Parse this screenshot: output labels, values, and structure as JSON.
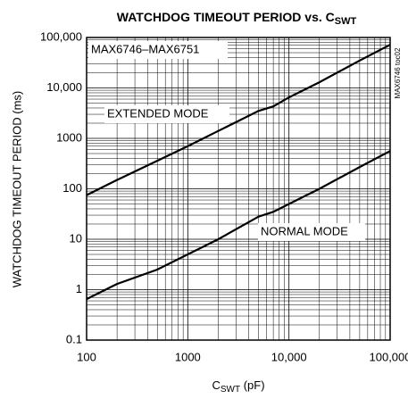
{
  "chart_data": {
    "type": "line",
    "title_parts": [
      "WATCHDOG TIMEOUT PERIOD vs. C",
      "SWT"
    ],
    "x_label_parts": [
      "C",
      "SWT",
      " (pF)"
    ],
    "y_label": "WATCHDOG TIMEOUT PERIOD (ms)",
    "annotations": [
      "MAX6746–MAX6751",
      "MAX6746 toc02"
    ],
    "log_x": true,
    "log_y": true,
    "grid": true,
    "minor_grid": true,
    "xlim": [
      100,
      100000
    ],
    "ylim": [
      0.1,
      100000
    ],
    "xticks": [
      100,
      1000,
      {
        "value": 10000,
        "label": "10,000"
      },
      {
        "value": 100000,
        "label": "100,000"
      }
    ],
    "yticks": [
      0.1,
      1,
      10,
      100,
      1000,
      {
        "value": 10000,
        "label": "10,000"
      },
      {
        "value": 100000,
        "label": "100,000"
      }
    ],
    "series": [
      {
        "name": "EXTENDED MODE",
        "color": "#000000",
        "x": [
          100,
          200,
          500,
          1000,
          2000,
          5000,
          7000,
          10000,
          20000,
          50000,
          100000
        ],
        "values": [
          75,
          150,
          360,
          700,
          1400,
          3500,
          4300,
          6500,
          13000,
          35000,
          72000
        ]
      },
      {
        "name": "NORMAL MODE",
        "color": "#000000",
        "x": [
          100,
          200,
          500,
          1000,
          2000,
          5000,
          7000,
          10000,
          20000,
          50000,
          100000
        ],
        "values": [
          0.65,
          1.3,
          2.5,
          5,
          10,
          28,
          35,
          50,
          100,
          270,
          560
        ]
      }
    ]
  }
}
